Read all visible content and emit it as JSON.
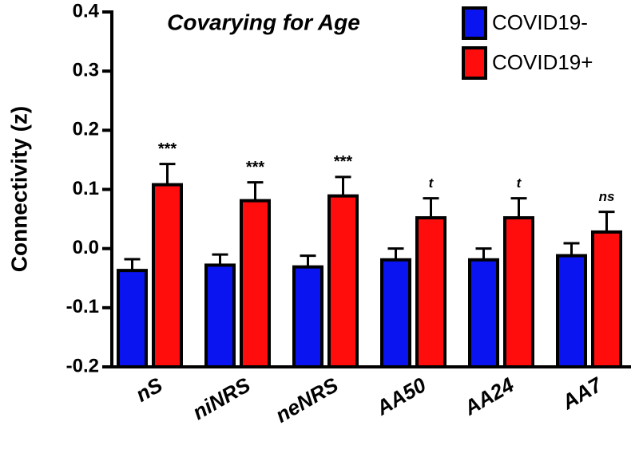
{
  "chart_data": {
    "type": "bar",
    "title": "Covarying for Age",
    "y_label": "Connectivity (z)",
    "categories": [
      "nS",
      "niNRS",
      "neNRS",
      "AA50",
      "AA24",
      "AA7"
    ],
    "series": [
      {
        "name": "COVID19-",
        "color": "#0a14f0",
        "values": [
          -0.037,
          -0.028,
          -0.031,
          -0.019,
          -0.019,
          -0.012
        ],
        "errors": [
          0.019,
          0.018,
          0.019,
          0.019,
          0.019,
          0.021
        ]
      },
      {
        "name": "COVID19+",
        "color": "#ff0d0d",
        "values": [
          0.108,
          0.081,
          0.089,
          0.052,
          0.052,
          0.028
        ],
        "errors": [
          0.035,
          0.031,
          0.032,
          0.033,
          0.033,
          0.034
        ],
        "annotations": [
          "***",
          "***",
          "***",
          "t",
          "t",
          "ns"
        ]
      }
    ],
    "ylim": [
      -0.2,
      0.4
    ],
    "yticks": [
      -0.2,
      -0.1,
      {
        "value": 0,
        "label": "0.0"
      },
      0.1,
      0.2,
      0.3,
      0.4
    ],
    "legend": "top-right"
  }
}
